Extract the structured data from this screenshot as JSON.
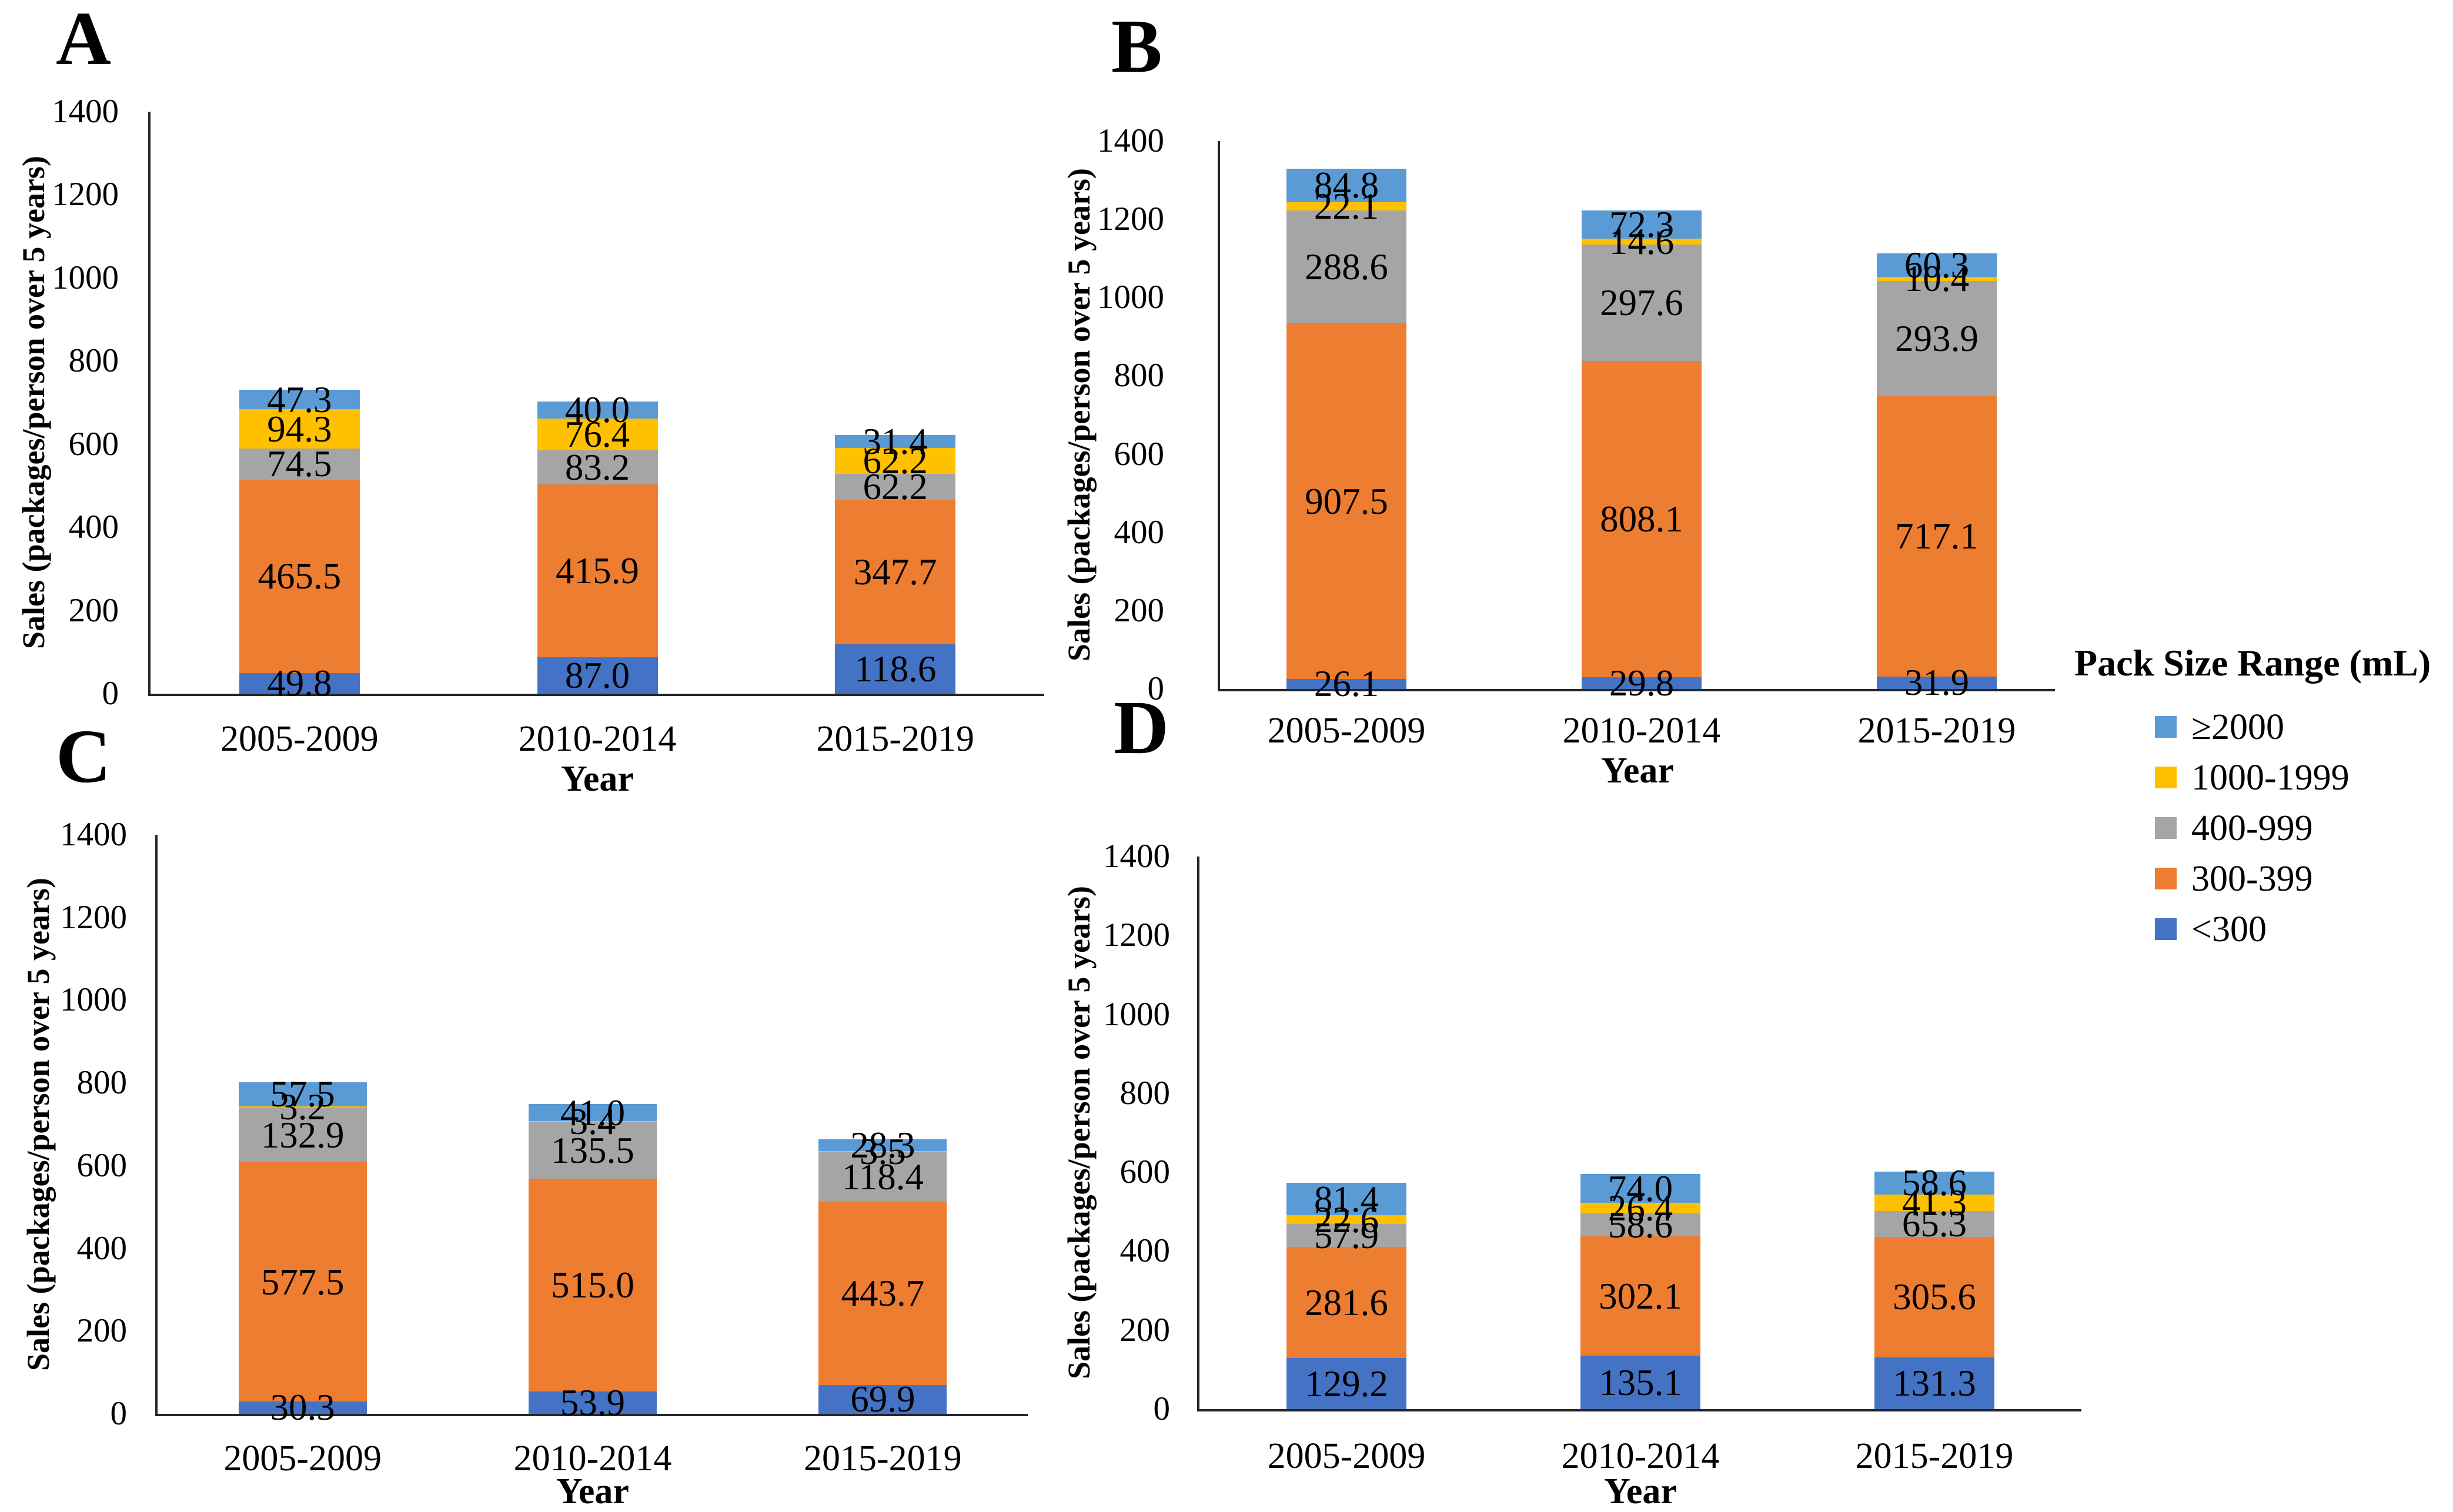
{
  "figure": {
    "background": "#ffffff",
    "text_color": "#000000",
    "axis_color": "#262626"
  },
  "legend": {
    "title": "Pack Size Range (mL)",
    "position": "right",
    "entries": [
      {
        "label": "≥2000",
        "color": "#5B9BD5"
      },
      {
        "label": "1000-1999",
        "color": "#FFC000"
      },
      {
        "label": "400-999",
        "color": "#A5A5A5"
      },
      {
        "label": "300-399",
        "color": "#ED7D31"
      },
      {
        "label": "<300",
        "color": "#4472C4"
      }
    ]
  },
  "chart_data": [
    {
      "panel": "A",
      "type": "bar",
      "stacked": true,
      "stack_order": "bottom-to-top",
      "xlabel": "Year",
      "ylabel": "Sales (packages/person over 5 years)",
      "ylim": [
        0,
        1400
      ],
      "yticks": [
        0,
        200,
        400,
        600,
        800,
        1000,
        1200,
        1400
      ],
      "grid": false,
      "categories": [
        "2005-2009",
        "2010-2014",
        "2015-2019"
      ],
      "series": [
        {
          "name": "<300",
          "color": "#4472C4",
          "values": [
            49.8,
            87.0,
            118.6
          ]
        },
        {
          "name": "300-399",
          "color": "#ED7D31",
          "values": [
            465.5,
            415.9,
            347.7
          ]
        },
        {
          "name": "400-999",
          "color": "#A5A5A5",
          "values": [
            74.5,
            83.2,
            62.2
          ]
        },
        {
          "name": "1000-1999",
          "color": "#FFC000",
          "values": [
            94.3,
            76.4,
            62.2
          ]
        },
        {
          "name": "≥2000",
          "color": "#5B9BD5",
          "values": [
            47.3,
            40.0,
            31.4
          ]
        }
      ]
    },
    {
      "panel": "B",
      "type": "bar",
      "stacked": true,
      "stack_order": "bottom-to-top",
      "xlabel": "Year",
      "ylabel": "Sales (packages/person over 5 years)",
      "ylim": [
        0,
        1400
      ],
      "yticks": [
        0,
        200,
        400,
        600,
        800,
        1000,
        1200,
        1400
      ],
      "grid": false,
      "categories": [
        "2005-2009",
        "2010-2014",
        "2015-2019"
      ],
      "series": [
        {
          "name": "<300",
          "color": "#4472C4",
          "values": [
            26.1,
            29.8,
            31.9
          ]
        },
        {
          "name": "300-399",
          "color": "#ED7D31",
          "values": [
            907.5,
            808.1,
            717.1
          ]
        },
        {
          "name": "400-999",
          "color": "#A5A5A5",
          "values": [
            288.6,
            297.6,
            293.9
          ]
        },
        {
          "name": "1000-1999",
          "color": "#FFC000",
          "values": [
            22.1,
            14.6,
            10.4
          ]
        },
        {
          "name": "≥2000",
          "color": "#5B9BD5",
          "values": [
            84.8,
            72.3,
            60.3
          ]
        }
      ]
    },
    {
      "panel": "C",
      "type": "bar",
      "stacked": true,
      "stack_order": "bottom-to-top",
      "xlabel": "Year",
      "ylabel": "Sales (packages/person over 5 years)",
      "ylim": [
        0,
        1400
      ],
      "yticks": [
        0,
        200,
        400,
        600,
        800,
        1000,
        1200,
        1400
      ],
      "grid": false,
      "categories": [
        "2005-2009",
        "2010-2014",
        "2015-2019"
      ],
      "series": [
        {
          "name": "<300",
          "color": "#4472C4",
          "values": [
            30.3,
            53.9,
            69.9
          ]
        },
        {
          "name": "300-399",
          "color": "#ED7D31",
          "values": [
            577.5,
            515.0,
            443.7
          ]
        },
        {
          "name": "400-999",
          "color": "#A5A5A5",
          "values": [
            132.9,
            135.5,
            118.4
          ]
        },
        {
          "name": "1000-1999",
          "color": "#FFC000",
          "values": [
            3.2,
            3.4,
            3.5
          ]
        },
        {
          "name": "≥2000",
          "color": "#5B9BD5",
          "values": [
            57.5,
            41.0,
            28.3
          ]
        }
      ]
    },
    {
      "panel": "D",
      "type": "bar",
      "stacked": true,
      "stack_order": "bottom-to-top",
      "xlabel": "Year",
      "ylabel": "Sales (packages/person over 5 years)",
      "ylim": [
        0,
        1400
      ],
      "yticks": [
        0,
        200,
        400,
        600,
        800,
        1000,
        1200,
        1400
      ],
      "grid": false,
      "categories": [
        "2005-2009",
        "2010-2014",
        "2015-2019"
      ],
      "series": [
        {
          "name": "<300",
          "color": "#4472C4",
          "values": [
            129.2,
            135.1,
            131.3
          ]
        },
        {
          "name": "300-399",
          "color": "#ED7D31",
          "values": [
            281.6,
            302.1,
            305.6
          ]
        },
        {
          "name": "400-999",
          "color": "#A5A5A5",
          "values": [
            57.9,
            58.6,
            65.3
          ]
        },
        {
          "name": "1000-1999",
          "color": "#FFC000",
          "values": [
            22.6,
            26.4,
            41.3
          ]
        },
        {
          "name": "≥2000",
          "color": "#5B9BD5",
          "values": [
            81.4,
            74.0,
            58.6
          ]
        }
      ]
    }
  ]
}
